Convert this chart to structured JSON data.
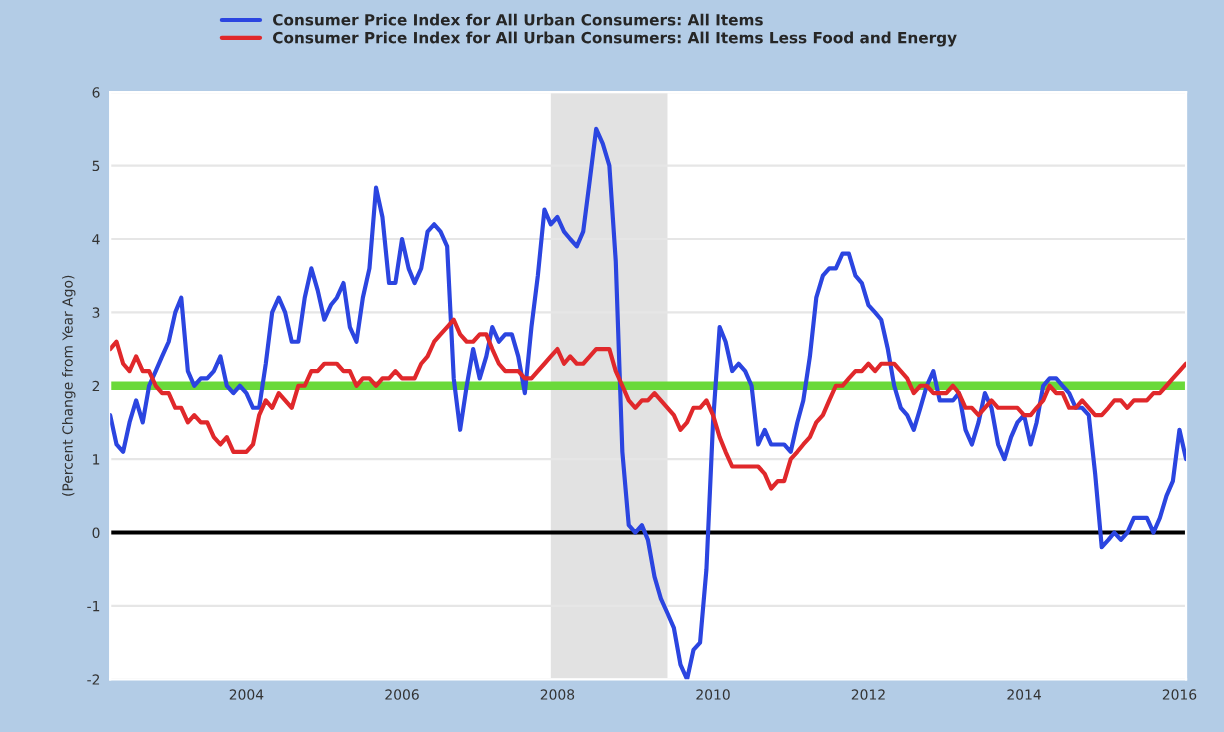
{
  "chart_data": {
    "type": "line",
    "ylabel": "(Percent Change from Year Ago)",
    "x": [
      "2002-04",
      "2002-05",
      "2002-06",
      "2002-07",
      "2002-08",
      "2002-09",
      "2002-10",
      "2002-11",
      "2002-12",
      "2003-01",
      "2003-02",
      "2003-03",
      "2003-04",
      "2003-05",
      "2003-06",
      "2003-07",
      "2003-08",
      "2003-09",
      "2003-10",
      "2003-11",
      "2003-12",
      "2004-01",
      "2004-02",
      "2004-03",
      "2004-04",
      "2004-05",
      "2004-06",
      "2004-07",
      "2004-08",
      "2004-09",
      "2004-10",
      "2004-11",
      "2004-12",
      "2005-01",
      "2005-02",
      "2005-03",
      "2005-04",
      "2005-05",
      "2005-06",
      "2005-07",
      "2005-08",
      "2005-09",
      "2005-10",
      "2005-11",
      "2005-12",
      "2006-01",
      "2006-02",
      "2006-03",
      "2006-04",
      "2006-05",
      "2006-06",
      "2006-07",
      "2006-08",
      "2006-09",
      "2006-10",
      "2006-11",
      "2006-12",
      "2007-01",
      "2007-02",
      "2007-03",
      "2007-04",
      "2007-05",
      "2007-06",
      "2007-07",
      "2007-08",
      "2007-09",
      "2007-10",
      "2007-11",
      "2007-12",
      "2008-01",
      "2008-02",
      "2008-03",
      "2008-04",
      "2008-05",
      "2008-06",
      "2008-07",
      "2008-08",
      "2008-09",
      "2008-10",
      "2008-11",
      "2008-12",
      "2009-01",
      "2009-02",
      "2009-03",
      "2009-04",
      "2009-05",
      "2009-06",
      "2009-07",
      "2009-08",
      "2009-09",
      "2009-10",
      "2009-11",
      "2009-12",
      "2010-01",
      "2010-02",
      "2010-03",
      "2010-04",
      "2010-05",
      "2010-06",
      "2010-07",
      "2010-08",
      "2010-09",
      "2010-10",
      "2010-11",
      "2010-12",
      "2011-01",
      "2011-02",
      "2011-03",
      "2011-04",
      "2011-05",
      "2011-06",
      "2011-07",
      "2011-08",
      "2011-09",
      "2011-10",
      "2011-11",
      "2011-12",
      "2012-01",
      "2012-02",
      "2012-03",
      "2012-04",
      "2012-05",
      "2012-06",
      "2012-07",
      "2012-08",
      "2012-09",
      "2012-10",
      "2012-11",
      "2012-12",
      "2013-01",
      "2013-02",
      "2013-03",
      "2013-04",
      "2013-05",
      "2013-06",
      "2013-07",
      "2013-08",
      "2013-09",
      "2013-10",
      "2013-11",
      "2013-12",
      "2014-01",
      "2014-02",
      "2014-03",
      "2014-04",
      "2014-05",
      "2014-06",
      "2014-07",
      "2014-08",
      "2014-09",
      "2014-10",
      "2014-11",
      "2014-12",
      "2015-01",
      "2015-02",
      "2015-03",
      "2015-04",
      "2015-05",
      "2015-06",
      "2015-07",
      "2015-08",
      "2015-09",
      "2015-10",
      "2015-11",
      "2015-12",
      "2016-01",
      "2016-02"
    ],
    "series": [
      {
        "name": "Consumer Price Index for All Urban Consumers: All Items",
        "color": "#2b45e0",
        "values": [
          1.6,
          1.2,
          1.1,
          1.5,
          1.8,
          1.5,
          2.0,
          2.2,
          2.4,
          2.6,
          3.0,
          3.2,
          2.2,
          2.0,
          2.1,
          2.1,
          2.2,
          2.4,
          2.0,
          1.9,
          2.0,
          1.9,
          1.7,
          1.7,
          2.3,
          3.0,
          3.2,
          3.0,
          2.6,
          2.6,
          3.2,
          3.6,
          3.3,
          2.9,
          3.1,
          3.2,
          3.4,
          2.8,
          2.6,
          3.2,
          3.6,
          4.7,
          4.3,
          3.4,
          3.4,
          4.0,
          3.6,
          3.4,
          3.6,
          4.1,
          4.2,
          4.1,
          3.9,
          2.1,
          1.4,
          2.0,
          2.5,
          2.1,
          2.4,
          2.8,
          2.6,
          2.7,
          2.7,
          2.4,
          1.9,
          2.8,
          3.5,
          4.4,
          4.2,
          4.3,
          4.1,
          4.0,
          3.9,
          4.1,
          4.8,
          5.5,
          5.3,
          5.0,
          3.7,
          1.1,
          0.1,
          0.0,
          0.1,
          -0.1,
          -0.6,
          -0.9,
          -1.1,
          -1.3,
          -1.8,
          -2.0,
          -1.6,
          -1.5,
          -0.5,
          1.5,
          2.8,
          2.6,
          2.2,
          2.3,
          2.2,
          2.0,
          1.2,
          1.4,
          1.2,
          1.2,
          1.2,
          1.1,
          1.5,
          1.8,
          2.4,
          3.2,
          3.5,
          3.6,
          3.6,
          3.8,
          3.8,
          3.5,
          3.4,
          3.1,
          3.0,
          2.9,
          2.5,
          2.0,
          1.7,
          1.6,
          1.4,
          1.7,
          2.0,
          2.2,
          1.8,
          1.8,
          1.8,
          1.9,
          1.4,
          1.2,
          1.5,
          1.9,
          1.7,
          1.2,
          1.0,
          1.3,
          1.5,
          1.6,
          1.2,
          1.5,
          2.0,
          2.1,
          2.1,
          2.0,
          1.9,
          1.7,
          1.7,
          1.6,
          0.8,
          -0.2,
          -0.1,
          -0.0,
          -0.1,
          0.0,
          0.2,
          0.2,
          0.2,
          0.0,
          0.2,
          0.5,
          0.7,
          1.4,
          1.0
        ]
      },
      {
        "name": "Consumer Price Index for All Urban Consumers: All Items Less Food and Energy",
        "color": "#e0282b",
        "values": [
          2.5,
          2.6,
          2.3,
          2.2,
          2.4,
          2.2,
          2.2,
          2.0,
          1.9,
          1.9,
          1.7,
          1.7,
          1.5,
          1.6,
          1.5,
          1.5,
          1.3,
          1.2,
          1.3,
          1.1,
          1.1,
          1.1,
          1.2,
          1.6,
          1.8,
          1.7,
          1.9,
          1.8,
          1.7,
          2.0,
          2.0,
          2.2,
          2.2,
          2.3,
          2.3,
          2.3,
          2.2,
          2.2,
          2.0,
          2.1,
          2.1,
          2.0,
          2.1,
          2.1,
          2.2,
          2.1,
          2.1,
          2.1,
          2.3,
          2.4,
          2.6,
          2.7,
          2.8,
          2.9,
          2.7,
          2.6,
          2.6,
          2.7,
          2.7,
          2.5,
          2.3,
          2.2,
          2.2,
          2.2,
          2.1,
          2.1,
          2.2,
          2.3,
          2.4,
          2.5,
          2.3,
          2.4,
          2.3,
          2.3,
          2.4,
          2.5,
          2.5,
          2.5,
          2.2,
          2.0,
          1.8,
          1.7,
          1.8,
          1.8,
          1.9,
          1.8,
          1.7,
          1.6,
          1.4,
          1.5,
          1.7,
          1.7,
          1.8,
          1.6,
          1.3,
          1.1,
          0.9,
          0.9,
          0.9,
          0.9,
          0.9,
          0.8,
          0.6,
          0.7,
          0.7,
          1.0,
          1.1,
          1.2,
          1.3,
          1.5,
          1.6,
          1.8,
          2.0,
          2.0,
          2.1,
          2.2,
          2.2,
          2.3,
          2.2,
          2.3,
          2.3,
          2.3,
          2.2,
          2.1,
          1.9,
          2.0,
          2.0,
          1.9,
          1.9,
          1.9,
          2.0,
          1.9,
          1.7,
          1.7,
          1.6,
          1.7,
          1.8,
          1.7,
          1.7,
          1.7,
          1.7,
          1.6,
          1.6,
          1.7,
          1.8,
          2.0,
          1.9,
          1.9,
          1.7,
          1.7,
          1.8,
          1.7,
          1.6,
          1.6,
          1.7,
          1.8,
          1.8,
          1.7,
          1.8,
          1.8,
          1.8,
          1.9,
          1.9,
          2.0,
          2.1,
          2.2,
          2.3
        ]
      }
    ],
    "xlim": [
      "2002-04",
      "2016-02"
    ],
    "xticks": [
      "2004",
      "2006",
      "2008",
      "2010",
      "2012",
      "2014",
      "2016"
    ],
    "ylim": [
      -2,
      6
    ],
    "yticks": [
      -2,
      -1,
      0,
      1,
      2,
      3,
      4,
      5,
      6
    ],
    "ref_lines": [
      {
        "axis": "y",
        "value": 2,
        "color": "#6ad93a"
      },
      {
        "axis": "y",
        "value": 0,
        "color": "#000000"
      }
    ],
    "bands": [
      {
        "axis": "x",
        "from": "2007-12",
        "to": "2009-06",
        "color": "#e2e2e2"
      }
    ],
    "grid": "y",
    "legend": "top left"
  }
}
